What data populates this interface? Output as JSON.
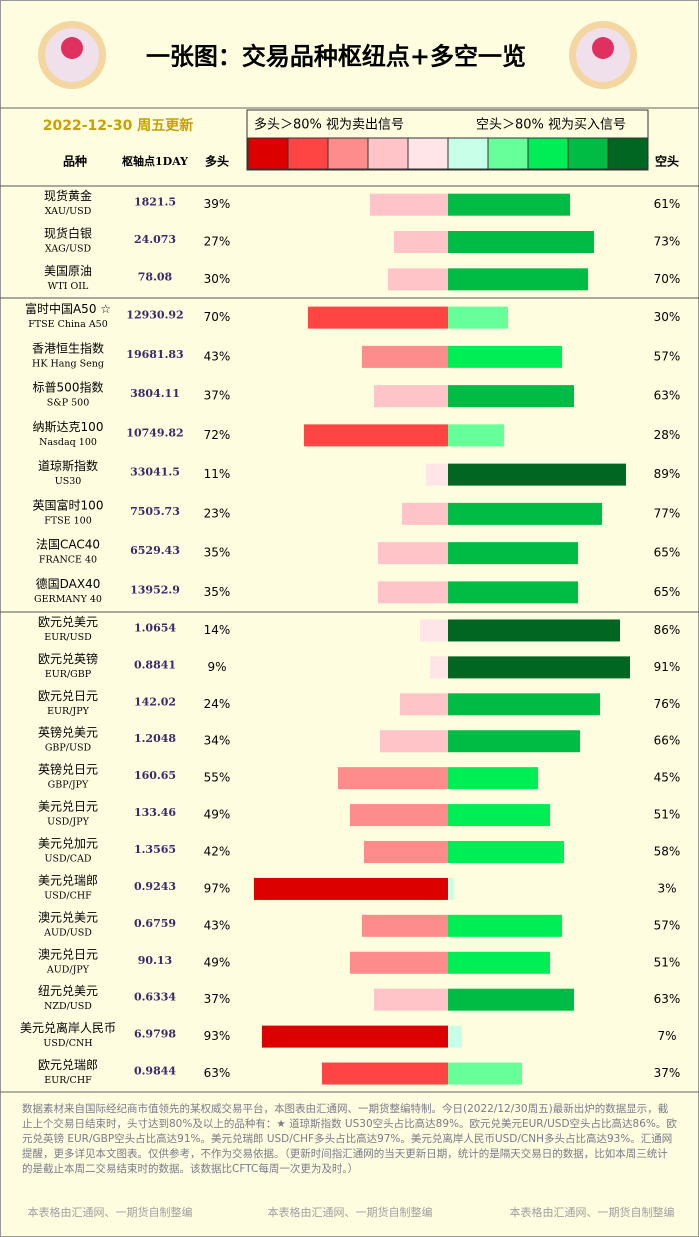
{
  "header": {
    "title": "一张图：交易品种枢纽点+多空一览",
    "date": "2022-12-30 周五更新"
  },
  "legend": {
    "long_text": "多头＞80% 视为卖出信号",
    "short_text": "空头＞80% 视为买入信号",
    "colors": [
      "#dd0000",
      "#ff4444",
      "#ff8c8c",
      "#ffc4c8",
      "#ffe4e8",
      "#c8ffe8",
      "#66ff99",
      "#00ee55",
      "#00bb44",
      "#006622"
    ]
  },
  "columns": {
    "name": "品种",
    "pivot": "枢轴点1DAY",
    "long": "多头",
    "short": "空头"
  },
  "groups": [
    {
      "rows": [
        {
          "name": "现货黄金",
          "code": "XAU/USD",
          "pivot": "1821.5",
          "long": 39,
          "long_label": "39%",
          "short": 61,
          "short_label": "61%"
        },
        {
          "name": "现货白银",
          "code": "XAG/USD",
          "pivot": "24.073",
          "long": 27,
          "long_label": "27%",
          "short": 73,
          "short_label": "73%"
        },
        {
          "name": "美国原油",
          "code": "WTI OIL",
          "pivot": "78.08",
          "long": 30,
          "long_label": "30%",
          "short": 70,
          "short_label": "70%"
        }
      ]
    },
    {
      "rows": [
        {
          "name": "富时中国A50 ☆",
          "code": "FTSE China A50",
          "pivot": "12930.92",
          "long": 70,
          "long_label": "70%",
          "short": 30,
          "short_label": "30%"
        },
        {
          "name": "香港恒生指数",
          "code": "HK Hang Seng",
          "pivot": "19681.83",
          "long": 43,
          "long_label": "43%",
          "short": 57,
          "short_label": "57%"
        },
        {
          "name": "标普500指数",
          "code": "S&P 500",
          "pivot": "3804.11",
          "long": 37,
          "long_label": "37%",
          "short": 63,
          "short_label": "63%"
        },
        {
          "name": "纳斯达克100",
          "code": "Nasdaq 100",
          "pivot": "10749.82",
          "long": 72,
          "long_label": "72%",
          "short": 28,
          "short_label": "28%"
        },
        {
          "name": "道琼斯指数",
          "code": "US30",
          "pivot": "33041.5",
          "long": 11,
          "long_label": "11%",
          "short": 89,
          "short_label": "89%"
        },
        {
          "name": "英国富时100",
          "code": "FTSE 100",
          "pivot": "7505.73",
          "long": 23,
          "long_label": "23%",
          "short": 77,
          "short_label": "77%"
        },
        {
          "name": "法国CAC40",
          "code": "FRANCE 40",
          "pivot": "6529.43",
          "long": 35,
          "long_label": "35%",
          "short": 65,
          "short_label": "65%"
        },
        {
          "name": "德国DAX40",
          "code": "GERMANY 40",
          "pivot": "13952.9",
          "long": 35,
          "long_label": "35%",
          "short": 65,
          "short_label": "65%"
        }
      ]
    },
    {
      "rows": [
        {
          "name": "欧元兑美元",
          "code": "EUR/USD",
          "pivot": "1.0654",
          "long": 14,
          "long_label": "14%",
          "short": 86,
          "short_label": "86%"
        },
        {
          "name": "欧元兑英镑",
          "code": "EUR/GBP",
          "pivot": "0.8841",
          "long": 9,
          "long_label": "9%",
          "short": 91,
          "short_label": "91%"
        },
        {
          "name": "欧元兑日元",
          "code": "EUR/JPY",
          "pivot": "142.02",
          "long": 24,
          "long_label": "24%",
          "short": 76,
          "short_label": "76%"
        },
        {
          "name": "英镑兑美元",
          "code": "GBP/USD",
          "pivot": "1.2048",
          "long": 34,
          "long_label": "34%",
          "short": 66,
          "short_label": "66%"
        },
        {
          "name": "英镑兑日元",
          "code": "GBP/JPY",
          "pivot": "160.65",
          "long": 55,
          "long_label": "55%",
          "short": 45,
          "short_label": "45%"
        },
        {
          "name": "美元兑日元",
          "code": "USD/JPY",
          "pivot": "133.46",
          "long": 49,
          "long_label": "49%",
          "short": 51,
          "short_label": "51%"
        },
        {
          "name": "美元兑加元",
          "code": "USD/CAD",
          "pivot": "1.3565",
          "long": 42,
          "long_label": "42%",
          "short": 58,
          "short_label": "58%"
        },
        {
          "name": "美元兑瑞郎",
          "code": "USD/CHF",
          "pivot": "0.9243",
          "long": 97,
          "long_label": "97%",
          "short": 3,
          "short_label": "3%"
        },
        {
          "name": "澳元兑美元",
          "code": "AUD/USD",
          "pivot": "0.6759",
          "long": 43,
          "long_label": "43%",
          "short": 57,
          "short_label": "57%"
        },
        {
          "name": "澳元兑日元",
          "code": "AUD/JPY",
          "pivot": "90.13",
          "long": 49,
          "long_label": "49%",
          "short": 51,
          "short_label": "51%"
        },
        {
          "name": "纽元兑美元",
          "code": "NZD/USD",
          "pivot": "0.6334",
          "long": 37,
          "long_label": "37%",
          "short": 63,
          "short_label": "63%"
        },
        {
          "name": "美元兑离岸人民币",
          "code": "USD/CNH",
          "pivot": "6.9798",
          "long": 93,
          "long_label": "93%",
          "short": 7,
          "short_label": "7%"
        },
        {
          "name": "欧元兑瑞郎",
          "code": "EUR/CHF",
          "pivot": "0.9844",
          "long": 63,
          "long_label": "63%",
          "short": 37,
          "short_label": "37%"
        }
      ]
    }
  ],
  "footer": {
    "note": "数据素材来自国际经纪商市值领先的某权威交易平台，本图表由汇通网、一期货整编特制。今日(2022/12/30周五)最新出炉的数据显示，截止上个交易日结束时，头寸达到80%及以上的品种有：★ 道琼斯指数 US30空头占比高达89%。欧元兑美元EUR/USD空头占比高达86%。欧元兑英镑 EUR/GBP空头占比高达91%。美元兑瑞郎 USD/CHF多头占比高达97%。美元兑离岸人民币USD/CNH多头占比高达93%。汇通网提醒，更多详见本文图表。仅供参考，不作为交易依据。（更新时间指汇通网的当天更新日期，统计的是隔天交易日的数据，比如本周三统计的是截止本周二交易结束时的数据。该数据比CFTC每周一次更为及时。）",
    "credits": [
      "本表格由汇通网、一期货自制整编",
      "本表格由汇通网、一期货自制整编",
      "本表格由汇通网、一期货自制整编"
    ]
  }
}
